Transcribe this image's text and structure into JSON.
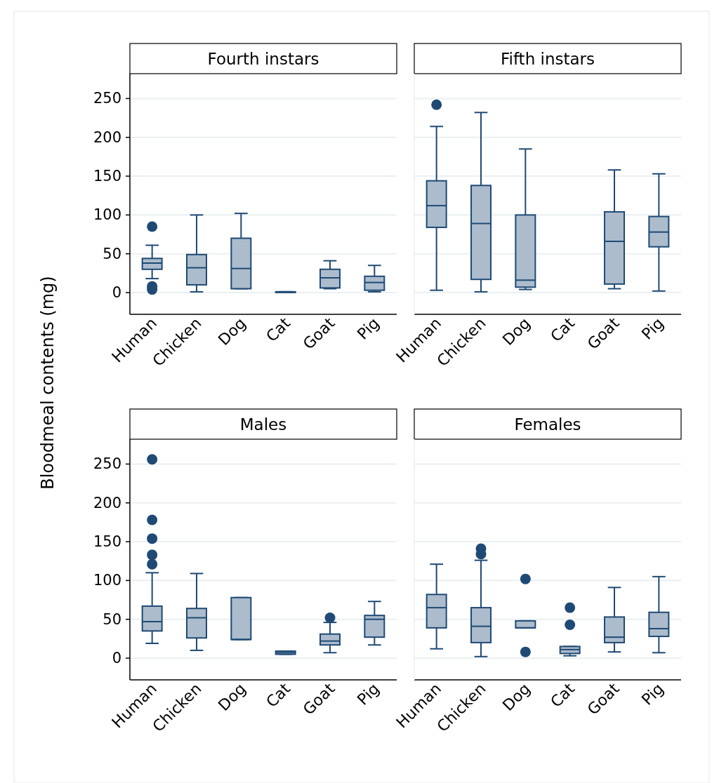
{
  "chart_data": [
    {
      "type": "box",
      "title": "Fourth instars",
      "ylabel": "Bloodmeal contents (mg)",
      "categories": [
        "Human",
        "Chicken",
        "Dog",
        "Cat",
        "Goat",
        "Pig"
      ],
      "ylim": [
        -28,
        282
      ],
      "yticks": [
        0,
        50,
        100,
        150,
        200,
        250
      ],
      "grid": "y",
      "color": "#1f4a75",
      "boxes": [
        {
          "low": 18,
          "q1": 30,
          "median": 38,
          "q3": 44,
          "high": 61,
          "outliers": [
            85,
            8,
            4
          ]
        },
        {
          "low": 1,
          "q1": 10,
          "median": 32,
          "q3": 49,
          "high": 100
        },
        {
          "low": 5,
          "q1": 5,
          "median": 31,
          "q3": 70,
          "high": 102
        },
        {
          "low": 1,
          "q1": 1,
          "median": 1,
          "q3": 1,
          "high": 1
        },
        {
          "low": 5,
          "q1": 6,
          "median": 19,
          "q3": 30,
          "high": 41
        },
        {
          "low": 1,
          "q1": 3,
          "median": 13,
          "q3": 21,
          "high": 35
        }
      ]
    },
    {
      "type": "box",
      "title": "Fifth instars",
      "categories": [
        "Human",
        "Chicken",
        "Dog",
        "Cat",
        "Goat",
        "Pig"
      ],
      "ylim": [
        -28,
        282
      ],
      "yticks": [
        0,
        50,
        100,
        150,
        200,
        250
      ],
      "grid": "y",
      "tick_labels": "x",
      "color": "#1f4a75",
      "boxes": [
        {
          "low": 3,
          "q1": 84,
          "median": 112,
          "q3": 144,
          "high": 214,
          "outliers": [
            242
          ]
        },
        {
          "low": 1,
          "q1": 17,
          "median": 89,
          "q3": 138,
          "high": 232
        },
        {
          "low": 4,
          "q1": 7,
          "median": 16,
          "q3": 100,
          "high": 185
        },
        null,
        {
          "low": 5,
          "q1": 11,
          "median": 66,
          "q3": 104,
          "high": 158
        },
        {
          "low": 2,
          "q1": 59,
          "median": 78,
          "q3": 98,
          "high": 153
        }
      ]
    },
    {
      "type": "box",
      "title": "Males",
      "categories": [
        "Human",
        "Chicken",
        "Dog",
        "Cat",
        "Goat",
        "Pig"
      ],
      "ylim": [
        -28,
        282
      ],
      "yticks": [
        0,
        50,
        100,
        150,
        200,
        250
      ],
      "grid": "y",
      "color": "#1f4a75",
      "boxes": [
        {
          "low": 19,
          "q1": 35,
          "median": 47,
          "q3": 67,
          "high": 110,
          "outliers": [
            256,
            178,
            154,
            133,
            121
          ]
        },
        {
          "low": 10,
          "q1": 26,
          "median": 52,
          "q3": 64,
          "high": 109
        },
        {
          "low": 24,
          "q1": 24,
          "median": 24,
          "q3": 78,
          "high": 78
        },
        {
          "low": 5,
          "q1": 5,
          "median": 7,
          "q3": 9,
          "high": 9
        },
        {
          "low": 7,
          "q1": 17,
          "median": 22,
          "q3": 31,
          "high": 46,
          "outliers": [
            52
          ]
        },
        {
          "low": 17,
          "q1": 27,
          "median": 50,
          "q3": 55,
          "high": 73
        }
      ]
    },
    {
      "type": "box",
      "title": "Females",
      "categories": [
        "Human",
        "Chicken",
        "Dog",
        "Cat",
        "Goat",
        "Pig"
      ],
      "ylim": [
        -28,
        282
      ],
      "yticks": [
        0,
        50,
        100,
        150,
        200,
        250
      ],
      "grid": "y",
      "tick_labels": "x",
      "color": "#1f4a75",
      "boxes": [
        {
          "low": 12,
          "q1": 39,
          "median": 65,
          "q3": 82,
          "high": 121
        },
        {
          "low": 2,
          "q1": 20,
          "median": 41,
          "q3": 65,
          "high": 126,
          "outliers": [
            141,
            134
          ]
        },
        {
          "low": 39,
          "q1": 39,
          "median": 39,
          "q3": 48,
          "high": 48,
          "outliers": [
            102,
            8
          ]
        },
        {
          "low": 3,
          "q1": 6,
          "median": 11,
          "q3": 15,
          "high": 15,
          "outliers": [
            65,
            43
          ]
        },
        {
          "low": 8,
          "q1": 20,
          "median": 27,
          "q3": 53,
          "high": 91
        },
        {
          "low": 7,
          "q1": 28,
          "median": 38,
          "q3": 59,
          "high": 105
        }
      ]
    }
  ]
}
